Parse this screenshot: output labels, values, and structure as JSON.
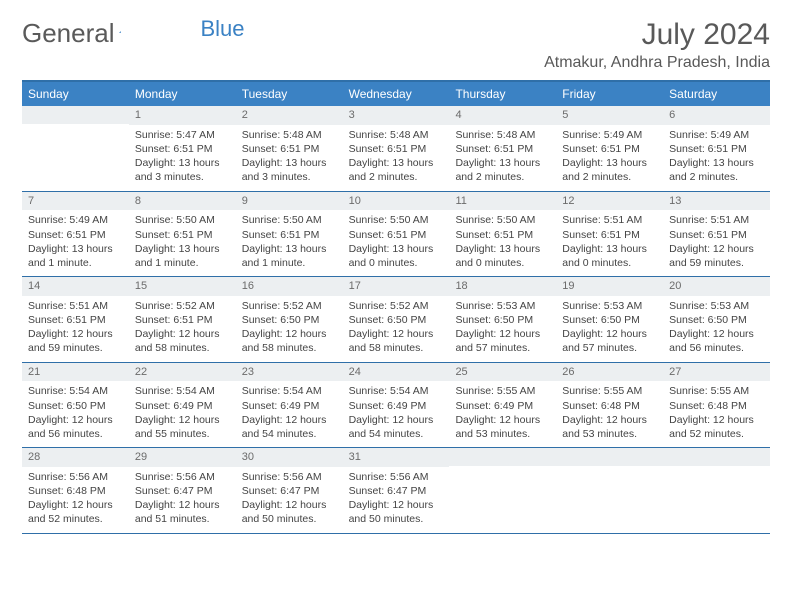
{
  "logo": {
    "text_a": "General",
    "text_b": "Blue"
  },
  "title": "July 2024",
  "location": "Atmakur, Andhra Pradesh, India",
  "colors": {
    "header_bg": "#3b82c4",
    "header_text": "#ffffff",
    "border": "#2f6fa8",
    "daynum_bg": "#eceff1",
    "text": "#444444",
    "title_text": "#595959"
  },
  "day_names": [
    "Sunday",
    "Monday",
    "Tuesday",
    "Wednesday",
    "Thursday",
    "Friday",
    "Saturday"
  ],
  "start_offset": 1,
  "days": [
    {
      "n": 1,
      "sr": "5:47 AM",
      "ss": "6:51 PM",
      "dl": "13 hours and 3 minutes."
    },
    {
      "n": 2,
      "sr": "5:48 AM",
      "ss": "6:51 PM",
      "dl": "13 hours and 3 minutes."
    },
    {
      "n": 3,
      "sr": "5:48 AM",
      "ss": "6:51 PM",
      "dl": "13 hours and 2 minutes."
    },
    {
      "n": 4,
      "sr": "5:48 AM",
      "ss": "6:51 PM",
      "dl": "13 hours and 2 minutes."
    },
    {
      "n": 5,
      "sr": "5:49 AM",
      "ss": "6:51 PM",
      "dl": "13 hours and 2 minutes."
    },
    {
      "n": 6,
      "sr": "5:49 AM",
      "ss": "6:51 PM",
      "dl": "13 hours and 2 minutes."
    },
    {
      "n": 7,
      "sr": "5:49 AM",
      "ss": "6:51 PM",
      "dl": "13 hours and 1 minute."
    },
    {
      "n": 8,
      "sr": "5:50 AM",
      "ss": "6:51 PM",
      "dl": "13 hours and 1 minute."
    },
    {
      "n": 9,
      "sr": "5:50 AM",
      "ss": "6:51 PM",
      "dl": "13 hours and 1 minute."
    },
    {
      "n": 10,
      "sr": "5:50 AM",
      "ss": "6:51 PM",
      "dl": "13 hours and 0 minutes."
    },
    {
      "n": 11,
      "sr": "5:50 AM",
      "ss": "6:51 PM",
      "dl": "13 hours and 0 minutes."
    },
    {
      "n": 12,
      "sr": "5:51 AM",
      "ss": "6:51 PM",
      "dl": "13 hours and 0 minutes."
    },
    {
      "n": 13,
      "sr": "5:51 AM",
      "ss": "6:51 PM",
      "dl": "12 hours and 59 minutes."
    },
    {
      "n": 14,
      "sr": "5:51 AM",
      "ss": "6:51 PM",
      "dl": "12 hours and 59 minutes."
    },
    {
      "n": 15,
      "sr": "5:52 AM",
      "ss": "6:51 PM",
      "dl": "12 hours and 58 minutes."
    },
    {
      "n": 16,
      "sr": "5:52 AM",
      "ss": "6:50 PM",
      "dl": "12 hours and 58 minutes."
    },
    {
      "n": 17,
      "sr": "5:52 AM",
      "ss": "6:50 PM",
      "dl": "12 hours and 58 minutes."
    },
    {
      "n": 18,
      "sr": "5:53 AM",
      "ss": "6:50 PM",
      "dl": "12 hours and 57 minutes."
    },
    {
      "n": 19,
      "sr": "5:53 AM",
      "ss": "6:50 PM",
      "dl": "12 hours and 57 minutes."
    },
    {
      "n": 20,
      "sr": "5:53 AM",
      "ss": "6:50 PM",
      "dl": "12 hours and 56 minutes."
    },
    {
      "n": 21,
      "sr": "5:54 AM",
      "ss": "6:50 PM",
      "dl": "12 hours and 56 minutes."
    },
    {
      "n": 22,
      "sr": "5:54 AM",
      "ss": "6:49 PM",
      "dl": "12 hours and 55 minutes."
    },
    {
      "n": 23,
      "sr": "5:54 AM",
      "ss": "6:49 PM",
      "dl": "12 hours and 54 minutes."
    },
    {
      "n": 24,
      "sr": "5:54 AM",
      "ss": "6:49 PM",
      "dl": "12 hours and 54 minutes."
    },
    {
      "n": 25,
      "sr": "5:55 AM",
      "ss": "6:49 PM",
      "dl": "12 hours and 53 minutes."
    },
    {
      "n": 26,
      "sr": "5:55 AM",
      "ss": "6:48 PM",
      "dl": "12 hours and 53 minutes."
    },
    {
      "n": 27,
      "sr": "5:55 AM",
      "ss": "6:48 PM",
      "dl": "12 hours and 52 minutes."
    },
    {
      "n": 28,
      "sr": "5:56 AM",
      "ss": "6:48 PM",
      "dl": "12 hours and 52 minutes."
    },
    {
      "n": 29,
      "sr": "5:56 AM",
      "ss": "6:47 PM",
      "dl": "12 hours and 51 minutes."
    },
    {
      "n": 30,
      "sr": "5:56 AM",
      "ss": "6:47 PM",
      "dl": "12 hours and 50 minutes."
    },
    {
      "n": 31,
      "sr": "5:56 AM",
      "ss": "6:47 PM",
      "dl": "12 hours and 50 minutes."
    }
  ],
  "labels": {
    "sunrise": "Sunrise:",
    "sunset": "Sunset:",
    "daylight": "Daylight:"
  }
}
